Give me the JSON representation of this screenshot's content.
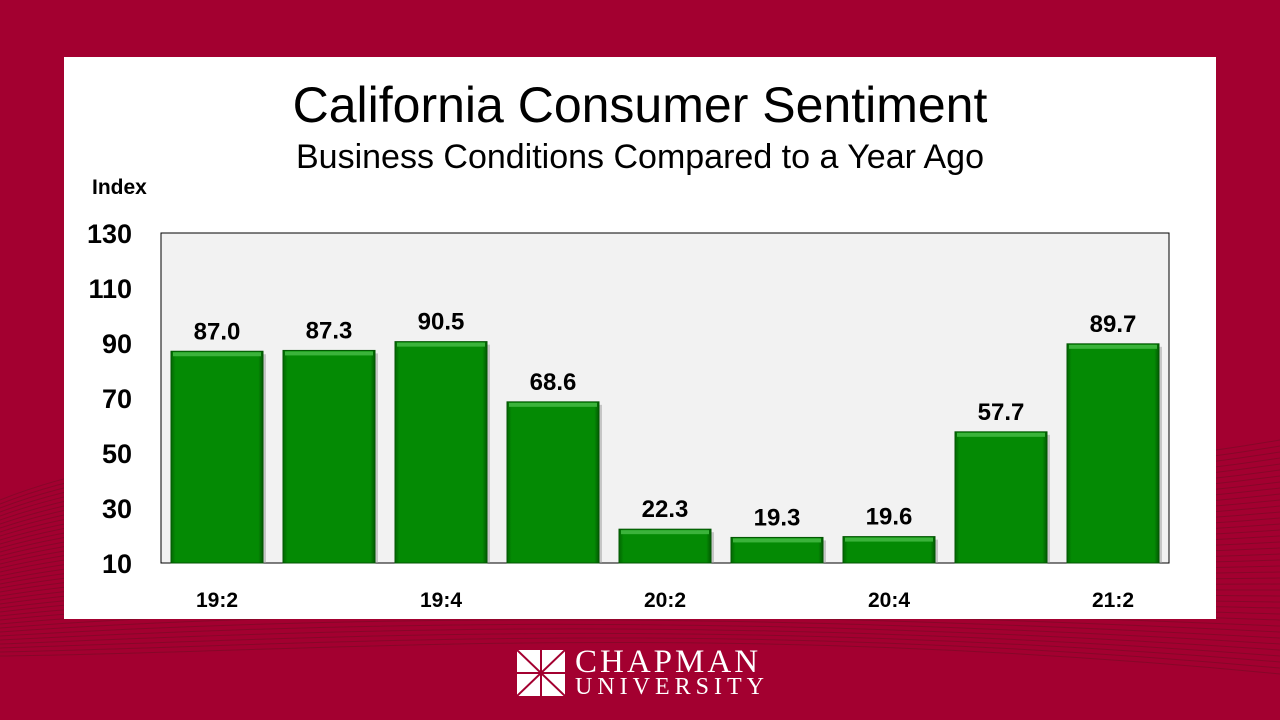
{
  "chart_data": {
    "type": "bar",
    "title": "California Consumer Sentiment",
    "subtitle": "Business Conditions Compared to a Year Ago",
    "ylabel": "Index",
    "xlabel": "",
    "ylim": [
      10,
      130
    ],
    "yticks": [
      10,
      30,
      50,
      70,
      90,
      110,
      130
    ],
    "categories": [
      "19:2",
      "",
      "19:4",
      "",
      "20:2",
      "",
      "20:4",
      "",
      "21:2"
    ],
    "values": [
      87.0,
      87.3,
      90.5,
      68.6,
      22.3,
      19.3,
      19.6,
      57.7,
      89.7
    ],
    "value_labels": [
      "87.0",
      "87.3",
      "90.5",
      "68.6",
      "22.3",
      "19.3",
      "19.6",
      "57.7",
      "89.7"
    ],
    "bar_color": "#048a04",
    "grid": false,
    "legend": "none"
  },
  "logo": {
    "line1": "CHAPMAN",
    "line2": "UNIVERSITY"
  },
  "colors": {
    "background": "#a30030",
    "plot_bg": "#f2f2f2"
  }
}
